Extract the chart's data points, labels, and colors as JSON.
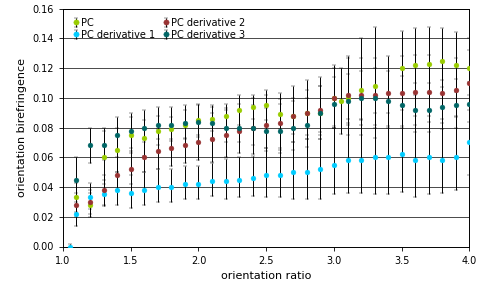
{
  "xlabel": "orientation ratio",
  "ylabel": "orientation birefringence",
  "xlim": [
    1.0,
    4.0
  ],
  "ylim": [
    0.0,
    0.16
  ],
  "xticks": [
    1.0,
    1.5,
    2.0,
    2.5,
    3.0,
    3.5,
    4.0
  ],
  "yticks": [
    0.0,
    0.02,
    0.04,
    0.06,
    0.08,
    0.1,
    0.12,
    0.14,
    0.16
  ],
  "series": [
    {
      "label": "PC",
      "color": "#99cc00",
      "data": [
        [
          1.1,
          0.033,
          0.01,
          0.01
        ],
        [
          1.2,
          0.028,
          0.008,
          0.008
        ],
        [
          1.3,
          0.06,
          0.018,
          0.018
        ],
        [
          1.4,
          0.065,
          0.015,
          0.015
        ],
        [
          1.5,
          0.075,
          0.012,
          0.012
        ],
        [
          1.6,
          0.073,
          0.012,
          0.012
        ],
        [
          1.7,
          0.078,
          0.01,
          0.01
        ],
        [
          1.8,
          0.079,
          0.008,
          0.008
        ],
        [
          1.9,
          0.082,
          0.01,
          0.01
        ],
        [
          2.0,
          0.085,
          0.01,
          0.01
        ],
        [
          2.1,
          0.086,
          0.008,
          0.008
        ],
        [
          2.2,
          0.088,
          0.008,
          0.008
        ],
        [
          2.3,
          0.092,
          0.01,
          0.01
        ],
        [
          2.4,
          0.094,
          0.008,
          0.008
        ],
        [
          2.5,
          0.095,
          0.01,
          0.01
        ],
        [
          2.6,
          0.089,
          0.01,
          0.01
        ],
        [
          2.7,
          0.088,
          0.012,
          0.012
        ],
        [
          2.8,
          0.09,
          0.015,
          0.015
        ],
        [
          2.9,
          0.09,
          0.018,
          0.018
        ],
        [
          3.0,
          0.1,
          0.02,
          0.02
        ],
        [
          3.05,
          0.098,
          0.022,
          0.022
        ],
        [
          3.1,
          0.1,
          0.025,
          0.028
        ],
        [
          3.2,
          0.105,
          0.03,
          0.035
        ],
        [
          3.3,
          0.108,
          0.035,
          0.04
        ],
        [
          3.5,
          0.12,
          0.025,
          0.025
        ],
        [
          3.6,
          0.122,
          0.02,
          0.025
        ],
        [
          3.7,
          0.123,
          0.02,
          0.025
        ],
        [
          3.8,
          0.125,
          0.018,
          0.022
        ],
        [
          3.9,
          0.122,
          0.018,
          0.022
        ],
        [
          4.0,
          0.12,
          0.018,
          0.02
        ]
      ]
    },
    {
      "label": "PC derivative 1",
      "color": "#00ccff",
      "data": [
        [
          1.05,
          0.0,
          0.002,
          0.002
        ],
        [
          1.1,
          0.022,
          0.008,
          0.008
        ],
        [
          1.2,
          0.033,
          0.008,
          0.01
        ],
        [
          1.3,
          0.035,
          0.008,
          0.01
        ],
        [
          1.4,
          0.038,
          0.01,
          0.012
        ],
        [
          1.5,
          0.036,
          0.01,
          0.012
        ],
        [
          1.6,
          0.038,
          0.01,
          0.012
        ],
        [
          1.7,
          0.04,
          0.01,
          0.012
        ],
        [
          1.8,
          0.04,
          0.01,
          0.012
        ],
        [
          1.9,
          0.042,
          0.01,
          0.012
        ],
        [
          2.0,
          0.042,
          0.01,
          0.012
        ],
        [
          2.1,
          0.044,
          0.01,
          0.012
        ],
        [
          2.2,
          0.044,
          0.012,
          0.015
        ],
        [
          2.3,
          0.045,
          0.012,
          0.015
        ],
        [
          2.4,
          0.046,
          0.012,
          0.015
        ],
        [
          2.5,
          0.048,
          0.015,
          0.018
        ],
        [
          2.6,
          0.048,
          0.015,
          0.018
        ],
        [
          2.7,
          0.05,
          0.018,
          0.02
        ],
        [
          2.8,
          0.05,
          0.018,
          0.022
        ],
        [
          2.9,
          0.052,
          0.02,
          0.025
        ],
        [
          3.0,
          0.055,
          0.02,
          0.025
        ],
        [
          3.1,
          0.058,
          0.022,
          0.028
        ],
        [
          3.2,
          0.058,
          0.022,
          0.028
        ],
        [
          3.3,
          0.06,
          0.025,
          0.03
        ],
        [
          3.4,
          0.06,
          0.025,
          0.03
        ],
        [
          3.5,
          0.062,
          0.025,
          0.03
        ],
        [
          3.6,
          0.058,
          0.025,
          0.03
        ],
        [
          3.7,
          0.06,
          0.025,
          0.028
        ],
        [
          3.8,
          0.058,
          0.022,
          0.028
        ],
        [
          3.9,
          0.06,
          0.022,
          0.028
        ],
        [
          4.0,
          0.07,
          0.022,
          0.025
        ]
      ]
    },
    {
      "label": "PC derivative 2",
      "color": "#993333",
      "data": [
        [
          1.1,
          0.028,
          0.008,
          0.008
        ],
        [
          1.2,
          0.03,
          0.008,
          0.008
        ],
        [
          1.3,
          0.038,
          0.01,
          0.01
        ],
        [
          1.4,
          0.048,
          0.01,
          0.012
        ],
        [
          1.5,
          0.052,
          0.01,
          0.012
        ],
        [
          1.6,
          0.06,
          0.01,
          0.012
        ],
        [
          1.7,
          0.064,
          0.012,
          0.015
        ],
        [
          1.8,
          0.066,
          0.012,
          0.015
        ],
        [
          1.9,
          0.068,
          0.012,
          0.015
        ],
        [
          2.0,
          0.07,
          0.012,
          0.015
        ],
        [
          2.1,
          0.072,
          0.015,
          0.018
        ],
        [
          2.2,
          0.075,
          0.015,
          0.018
        ],
        [
          2.3,
          0.078,
          0.015,
          0.018
        ],
        [
          2.4,
          0.08,
          0.018,
          0.02
        ],
        [
          2.5,
          0.082,
          0.018,
          0.02
        ],
        [
          2.6,
          0.083,
          0.018,
          0.02
        ],
        [
          2.7,
          0.088,
          0.018,
          0.02
        ],
        [
          2.8,
          0.09,
          0.018,
          0.022
        ],
        [
          2.9,
          0.092,
          0.02,
          0.022
        ],
        [
          3.0,
          0.1,
          0.02,
          0.022
        ],
        [
          3.1,
          0.102,
          0.02,
          0.025
        ],
        [
          3.2,
          0.102,
          0.02,
          0.025
        ],
        [
          3.3,
          0.102,
          0.022,
          0.025
        ],
        [
          3.4,
          0.103,
          0.022,
          0.025
        ],
        [
          3.5,
          0.103,
          0.022,
          0.025
        ],
        [
          3.6,
          0.104,
          0.022,
          0.025
        ],
        [
          3.7,
          0.104,
          0.02,
          0.025
        ],
        [
          3.8,
          0.103,
          0.02,
          0.022
        ],
        [
          3.9,
          0.105,
          0.018,
          0.022
        ],
        [
          4.0,
          0.11,
          0.018,
          0.022
        ]
      ]
    },
    {
      "label": "PC derivative 3",
      "color": "#006666",
      "data": [
        [
          1.1,
          0.045,
          0.012,
          0.015
        ],
        [
          1.2,
          0.068,
          0.012,
          0.012
        ],
        [
          1.3,
          0.068,
          0.01,
          0.012
        ],
        [
          1.4,
          0.075,
          0.01,
          0.012
        ],
        [
          1.5,
          0.078,
          0.012,
          0.012
        ],
        [
          1.6,
          0.08,
          0.01,
          0.012
        ],
        [
          1.7,
          0.082,
          0.01,
          0.012
        ],
        [
          1.8,
          0.082,
          0.01,
          0.012
        ],
        [
          1.9,
          0.083,
          0.01,
          0.012
        ],
        [
          2.0,
          0.084,
          0.01,
          0.012
        ],
        [
          2.1,
          0.083,
          0.01,
          0.012
        ],
        [
          2.2,
          0.08,
          0.01,
          0.012
        ],
        [
          2.3,
          0.08,
          0.01,
          0.012
        ],
        [
          2.4,
          0.08,
          0.012,
          0.015
        ],
        [
          2.5,
          0.078,
          0.012,
          0.015
        ],
        [
          2.6,
          0.078,
          0.015,
          0.018
        ],
        [
          2.7,
          0.08,
          0.015,
          0.018
        ],
        [
          2.8,
          0.082,
          0.015,
          0.018
        ],
        [
          2.9,
          0.09,
          0.015,
          0.018
        ],
        [
          3.0,
          0.096,
          0.015,
          0.018
        ],
        [
          3.1,
          0.098,
          0.015,
          0.018
        ],
        [
          3.2,
          0.1,
          0.015,
          0.018
        ],
        [
          3.3,
          0.1,
          0.018,
          0.02
        ],
        [
          3.4,
          0.098,
          0.018,
          0.02
        ],
        [
          3.5,
          0.095,
          0.015,
          0.02
        ],
        [
          3.6,
          0.092,
          0.015,
          0.018
        ],
        [
          3.7,
          0.092,
          0.015,
          0.018
        ],
        [
          3.8,
          0.094,
          0.015,
          0.018
        ],
        [
          3.9,
          0.095,
          0.015,
          0.018
        ],
        [
          4.0,
          0.096,
          0.012,
          0.015
        ]
      ]
    }
  ],
  "marker_size": 3.5,
  "capsize": 1.5,
  "elinewidth": 0.7,
  "background_color": "#ffffff",
  "legend_fontsize": 7,
  "axis_fontsize": 8,
  "tick_fontsize": 7
}
